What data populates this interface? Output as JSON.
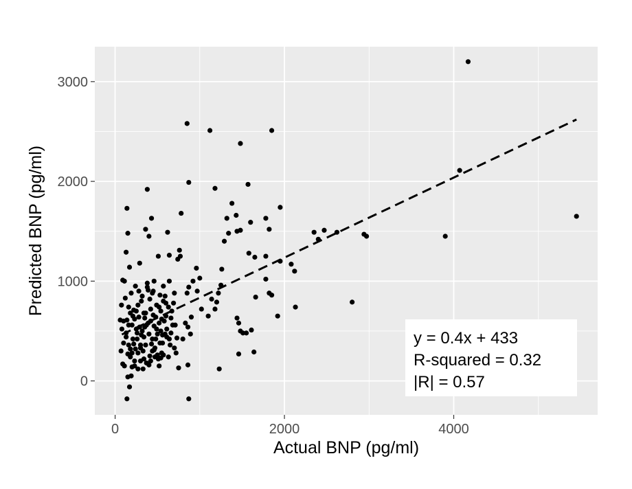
{
  "chart_data": {
    "type": "scatter",
    "title": "",
    "xlabel": "Actual BNP (pg/ml)",
    "ylabel": "Predicted BNP (pg/ml)",
    "xlim": [
      -240,
      5700
    ],
    "ylim": [
      -340,
      3350
    ],
    "x_ticks": [
      0,
      2000,
      4000
    ],
    "x_tick_labels": [
      "0",
      "2000",
      "4000"
    ],
    "y_ticks": [
      0,
      1000,
      2000,
      3000
    ],
    "y_tick_labels": [
      "0",
      "1000",
      "2000",
      "3000"
    ],
    "grid": true,
    "legend": "none",
    "colors": {
      "panel": "#ebebeb",
      "grid": "#ffffff",
      "points": "#000000",
      "trend_line": "#000000",
      "annotation_box": "#ffffff"
    },
    "trend_line": {
      "style": "dashed",
      "x": [
        80,
        5450
      ],
      "y": [
        465,
        2620
      ]
    },
    "annotation": {
      "position": "bottom-right",
      "lines": [
        "y = 0.4x + 433",
        "R-squared = 0.32",
        "|R| = 0.57"
      ]
    },
    "series": [
      {
        "points": [
          [
            4170,
            3200
          ],
          [
            850,
            2580
          ],
          [
            1120,
            2510
          ],
          [
            1850,
            2510
          ],
          [
            1480,
            2380
          ],
          [
            870,
            1990
          ],
          [
            1570,
            1970
          ],
          [
            1180,
            1930
          ],
          [
            380,
            1920
          ],
          [
            4070,
            2110
          ],
          [
            5450,
            1650
          ],
          [
            3900,
            1450
          ],
          [
            2970,
            1450
          ],
          [
            2800,
            790
          ],
          [
            2130,
            740
          ],
          [
            2120,
            1100
          ],
          [
            2080,
            1170
          ],
          [
            1950,
            1200
          ],
          [
            1950,
            1740
          ],
          [
            1920,
            650
          ],
          [
            1850,
            860
          ],
          [
            1820,
            880
          ],
          [
            1820,
            1520
          ],
          [
            1780,
            1250
          ],
          [
            1780,
            1630
          ],
          [
            1780,
            1020
          ],
          [
            1660,
            840
          ],
          [
            1650,
            1240
          ],
          [
            1640,
            290
          ],
          [
            1610,
            510
          ],
          [
            1600,
            1590
          ],
          [
            1580,
            1280
          ],
          [
            1550,
            480
          ],
          [
            1510,
            480
          ],
          [
            1480,
            500
          ],
          [
            1460,
            580
          ],
          [
            1440,
            630
          ],
          [
            1460,
            270
          ],
          [
            1430,
            1660
          ],
          [
            1480,
            1510
          ],
          [
            1440,
            1500
          ],
          [
            1380,
            1780
          ],
          [
            1340,
            1480
          ],
          [
            1320,
            1630
          ],
          [
            1290,
            1400
          ],
          [
            1260,
            1120
          ],
          [
            1250,
            960
          ],
          [
            1220,
            880
          ],
          [
            1200,
            790
          ],
          [
            1180,
            720
          ],
          [
            1140,
            820
          ],
          [
            1100,
            650
          ],
          [
            1020,
            720
          ],
          [
            1000,
            1030
          ],
          [
            970,
            900
          ],
          [
            960,
            1130
          ],
          [
            920,
            1000
          ],
          [
            900,
            640
          ],
          [
            890,
            470
          ],
          [
            870,
            940
          ],
          [
            860,
            540
          ],
          [
            850,
            880
          ],
          [
            830,
            580
          ],
          [
            800,
            420
          ],
          [
            780,
            1680
          ],
          [
            770,
            1250
          ],
          [
            760,
            1310
          ],
          [
            740,
            1220
          ],
          [
            750,
            130
          ],
          [
            860,
            160
          ],
          [
            1230,
            120
          ],
          [
            2350,
            1490
          ],
          [
            2400,
            1420
          ],
          [
            2470,
            1510
          ],
          [
            2620,
            1490
          ],
          [
            2940,
            1470
          ],
          [
            700,
            880
          ],
          [
            690,
            780
          ],
          [
            670,
            700
          ],
          [
            660,
            630
          ],
          [
            640,
            1000
          ],
          [
            630,
            740
          ],
          [
            610,
            520
          ],
          [
            600,
            650
          ],
          [
            590,
            470
          ],
          [
            570,
            800
          ],
          [
            560,
            380
          ],
          [
            550,
            280
          ],
          [
            540,
            700
          ],
          [
            530,
            860
          ],
          [
            520,
            580
          ],
          [
            510,
            220
          ],
          [
            500,
            470
          ],
          [
            490,
            760
          ],
          [
            480,
            640
          ],
          [
            470,
            330
          ],
          [
            460,
            550
          ],
          [
            450,
            900
          ],
          [
            440,
            420
          ],
          [
            430,
            1630
          ],
          [
            420,
            720
          ],
          [
            410,
            250
          ],
          [
            400,
            1450
          ],
          [
            390,
            910
          ],
          [
            380,
            940
          ],
          [
            370,
            560
          ],
          [
            360,
            1520
          ],
          [
            350,
            630
          ],
          [
            340,
            440
          ],
          [
            330,
            120
          ],
          [
            320,
            850
          ],
          [
            310,
            800
          ],
          [
            300,
            360
          ],
          [
            290,
            540
          ],
          [
            280,
            640
          ],
          [
            270,
            280
          ],
          [
            260,
            480
          ],
          [
            250,
            520
          ],
          [
            240,
            950
          ],
          [
            230,
            200
          ],
          [
            220,
            710
          ],
          [
            210,
            420
          ],
          [
            200,
            560
          ],
          [
            190,
            880
          ],
          [
            180,
            320
          ],
          [
            170,
            1140
          ],
          [
            160,
            740
          ],
          [
            150,
            270
          ],
          [
            140,
            610
          ],
          [
            130,
            440
          ],
          [
            120,
            830
          ],
          [
            110,
            150
          ],
          [
            100,
            380
          ],
          [
            90,
            1010
          ],
          [
            80,
            520
          ],
          [
            75,
            760
          ],
          [
            70,
            300
          ],
          [
            140,
            1730
          ],
          [
            150,
            1480
          ],
          [
            130,
            1290
          ],
          [
            110,
            1000
          ],
          [
            60,
            610
          ],
          [
            90,
            170
          ],
          [
            150,
            40
          ],
          [
            170,
            -60
          ],
          [
            140,
            -180
          ],
          [
            870,
            -180
          ],
          [
            200,
            280
          ],
          [
            230,
            620
          ],
          [
            260,
            420
          ],
          [
            280,
            900
          ],
          [
            300,
            200
          ],
          [
            320,
            500
          ],
          [
            340,
            680
          ],
          [
            360,
            360
          ],
          [
            380,
            980
          ],
          [
            400,
            160
          ],
          [
            420,
            600
          ],
          [
            440,
            300
          ],
          [
            460,
            1000
          ],
          [
            480,
            420
          ],
          [
            500,
            260
          ],
          [
            520,
            740
          ],
          [
            540,
            500
          ],
          [
            560,
            460
          ],
          [
            580,
            600
          ],
          [
            600,
            780
          ],
          [
            620,
            1490
          ],
          [
            640,
            1260
          ],
          [
            650,
            360
          ],
          [
            680,
            560
          ],
          [
            700,
            330
          ],
          [
            720,
            280
          ],
          [
            160,
            560
          ],
          [
            180,
            240
          ],
          [
            210,
            650
          ],
          [
            240,
            320
          ],
          [
            270,
            760
          ],
          [
            290,
            1180
          ],
          [
            310,
            460
          ],
          [
            330,
            300
          ],
          [
            350,
            540
          ],
          [
            370,
            180
          ],
          [
            390,
            580
          ],
          [
            410,
            820
          ],
          [
            430,
            370
          ],
          [
            450,
            660
          ],
          [
            470,
            240
          ],
          [
            490,
            520
          ],
          [
            510,
            1250
          ],
          [
            530,
            380
          ],
          [
            550,
            620
          ],
          [
            570,
            260
          ],
          [
            590,
            850
          ],
          [
            610,
            440
          ],
          [
            630,
            240
          ],
          [
            660,
            480
          ],
          [
            710,
            560
          ],
          [
            730,
            430
          ],
          [
            230,
            150
          ],
          [
            190,
            50
          ],
          [
            220,
            370
          ],
          [
            250,
            700
          ],
          [
            270,
            120
          ],
          [
            300,
            330
          ],
          [
            340,
            220
          ],
          [
            360,
            680
          ],
          [
            400,
            470
          ],
          [
            420,
            200
          ],
          [
            440,
            880
          ],
          [
            460,
            310
          ],
          [
            520,
            150
          ],
          [
            540,
            230
          ],
          [
            570,
            950
          ],
          [
            100,
            600
          ],
          [
            130,
            480
          ],
          [
            160,
            360
          ],
          [
            180,
            680
          ],
          [
            200,
            140
          ],
          [
            640,
            420
          ]
        ]
      }
    ]
  }
}
